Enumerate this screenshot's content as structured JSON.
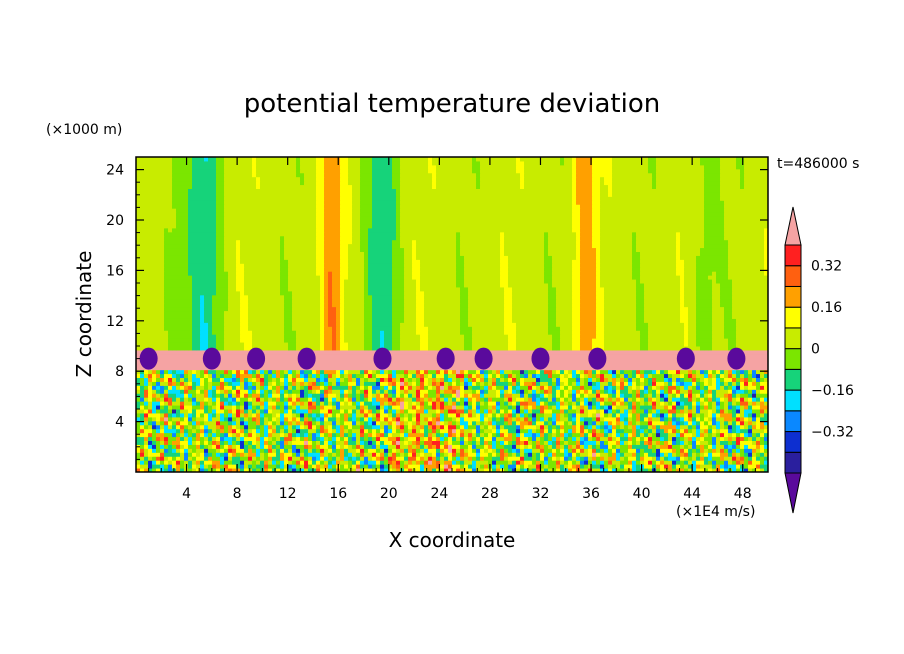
{
  "chart_data": {
    "type": "heatmap",
    "title": "potential temperature deviation",
    "time_label": "t=486000 s",
    "xlabel": "X coordinate",
    "ylabel": "Z coordinate",
    "x_unit": "(×1E4 m/s)",
    "y_unit": "(×1000 m)",
    "xlim": [
      0,
      50
    ],
    "ylim": [
      0,
      25
    ],
    "x_ticks": [
      4,
      8,
      12,
      16,
      20,
      24,
      28,
      32,
      36,
      40,
      44,
      48
    ],
    "y_ticks": [
      4,
      8,
      12,
      16,
      20,
      24
    ],
    "colorbar": {
      "levels": [
        -0.48,
        -0.4,
        -0.32,
        -0.24,
        -0.16,
        -0.08,
        0,
        0.08,
        0.16,
        0.24,
        0.32,
        0.4
      ],
      "tick_labels": [
        "0.32",
        "0.16",
        "0",
        "−0.16",
        "−0.32"
      ],
      "tick_values": [
        0.32,
        0.16,
        0,
        -0.16,
        -0.32
      ],
      "colors": [
        "#5a0a9c",
        "#2a1f9e",
        "#0d2fd0",
        "#0a88ff",
        "#00e0ff",
        "#16d37a",
        "#7be600",
        "#c8ec00",
        "#ffff00",
        "#ffa000",
        "#ff6010",
        "#ff2020",
        "#f5a3a3"
      ],
      "low_color": "#5a0a9c",
      "high_color": "#f5a3a3"
    },
    "regions": {
      "upper_layer": {
        "z_range": [
          9.8,
          25
        ],
        "dominant_value": 0.04,
        "description_color": "#7be600"
      },
      "inversion_band": {
        "z_range": [
          8.2,
          9.8
        ],
        "dominant_value": 0.45,
        "color": "#f5a3a3"
      },
      "turbulent_layer": {
        "z_range": [
          0,
          8.2
        ],
        "value_range": [
          -0.48,
          0.4
        ]
      },
      "warm_columns_x": [
        15.5,
        35.5
      ],
      "cool_columns_x": [
        5.5,
        19.5
      ]
    }
  }
}
